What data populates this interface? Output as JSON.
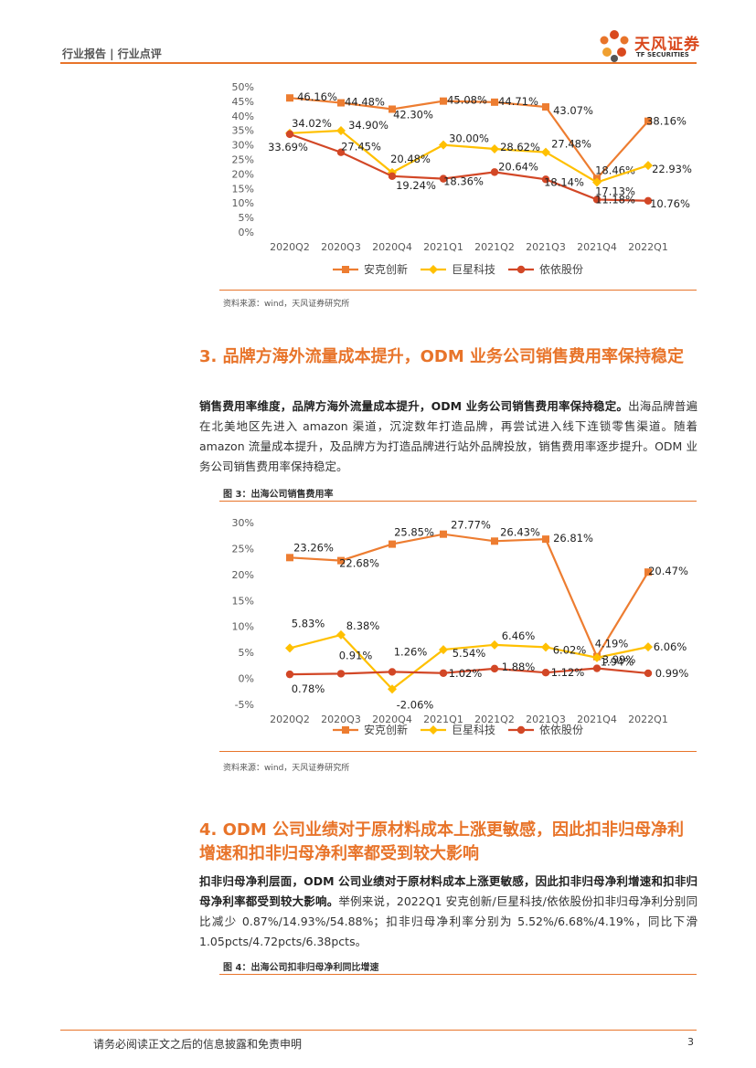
{
  "header": {
    "left": "行业报告 | 行业点评",
    "logo_name": "天风证券",
    "logo_sub": "TF SECURITIES"
  },
  "colors": {
    "accent": "#e8742a",
    "ankr": "#ed7d31",
    "jxkj": "#ffc000",
    "yygf": "#d24726"
  },
  "chart1": {
    "source": "资料来源：wind，天风证券研究所",
    "chart_data": {
      "type": "line",
      "categories": [
        "2020Q2",
        "2020Q3",
        "2020Q4",
        "2021Q1",
        "2021Q2",
        "2021Q3",
        "2021Q4",
        "2022Q1"
      ],
      "ylim": [
        0,
        50
      ],
      "yticks": [
        "0%",
        "5%",
        "10%",
        "15%",
        "20%",
        "25%",
        "30%",
        "35%",
        "40%",
        "45%",
        "50%"
      ],
      "series": [
        {
          "name": "安克创新",
          "values": [
            46.16,
            44.48,
            42.3,
            45.08,
            44.71,
            43.07,
            18.46,
            38.16
          ],
          "labels": [
            "46.16%",
            "44.48%",
            "42.30%",
            "45.08%",
            "44.71%",
            "43.07%",
            "18.46%",
            "38.16%"
          ]
        },
        {
          "name": "巨星科技",
          "values": [
            34.02,
            34.9,
            20.48,
            30.0,
            28.62,
            27.48,
            17.13,
            22.93
          ],
          "labels": [
            "34.02%",
            "34.90%",
            "20.48%",
            "30.00%",
            "28.62%",
            "27.48%",
            "17.13%",
            "22.93%"
          ]
        },
        {
          "name": "依依股份",
          "values": [
            33.69,
            27.45,
            19.24,
            18.36,
            20.64,
            18.14,
            11.18,
            10.76
          ],
          "labels": [
            "33.69%",
            "27.45%",
            "19.24%",
            "18.36%",
            "20.64%",
            "18.14%",
            "11.18%",
            "10.76%"
          ]
        }
      ]
    }
  },
  "section3": {
    "heading": "3. 品牌方海外流量成本提升，ODM 业务公司销售费用率保持稳定",
    "para_bold": "销售费用率维度，品牌方海外流量成本提升，ODM 业务公司销售费用率保持稳定。",
    "para_rest": "出海品牌普遍在北美地区先进入 amazon 渠道，沉淀数年打造品牌，再尝试进入线下连锁零售渠道。随着 amazon 流量成本提升，及品牌方为打造品牌进行站外品牌投放，销售费用率逐步提升。ODM 业务公司销售费用率保持稳定。",
    "figure_title": "图 3：出海公司销售费用率"
  },
  "chart2": {
    "source": "资料来源：wind，天风证券研究所",
    "chart_data": {
      "type": "line",
      "categories": [
        "2020Q2",
        "2020Q3",
        "2020Q4",
        "2021Q1",
        "2021Q2",
        "2021Q3",
        "2021Q4",
        "2022Q1"
      ],
      "ylim": [
        -5,
        30
      ],
      "yticks": [
        "-5%",
        "0%",
        "5%",
        "10%",
        "15%",
        "20%",
        "25%",
        "30%"
      ],
      "series": [
        {
          "name": "安克创新",
          "values": [
            23.26,
            22.68,
            25.85,
            27.77,
            26.43,
            26.81,
            4.19,
            20.47
          ],
          "labels": [
            "23.26%",
            "22.68%",
            "25.85%",
            "27.77%",
            "26.43%",
            "26.81%",
            "4.19%",
            "20.47%"
          ]
        },
        {
          "name": "巨星科技",
          "values": [
            5.83,
            8.38,
            -2.06,
            5.54,
            6.46,
            6.02,
            3.99,
            6.06
          ],
          "labels": [
            "5.83%",
            "8.38%",
            "-2.06%",
            "5.54%",
            "6.46%",
            "6.02%",
            "3.99%",
            "6.06%"
          ]
        },
        {
          "name": "依依股份",
          "values": [
            0.78,
            0.91,
            1.26,
            1.02,
            1.88,
            1.12,
            1.94,
            0.99
          ],
          "labels": [
            "0.78%",
            "0.91%",
            "1.26%",
            "1.02%",
            "1.88%",
            "1.12%",
            "1.94%",
            "0.99%"
          ]
        }
      ]
    }
  },
  "section4": {
    "heading": "4. ODM 公司业绩对于原材料成本上涨更敏感，因此扣非归母净利增速和扣非归母净利率都受到较大影响",
    "para_bold": "扣非归母净利层面，ODM 公司业绩对于原材料成本上涨更敏感，因此扣非归母净利增速和扣非归母净利率都受到较大影响。",
    "para_rest": "举例来说，2022Q1 安克创新/巨星科技/依依股份扣非归母净利分别同比减少 0.87%/14.93%/54.88%；扣非归母净利率分别为 5.52%/6.68%/4.19%，同比下滑 1.05pcts/4.72pcts/6.38pcts。",
    "figure_title": "图 4：出海公司扣非归母净利同比增速"
  },
  "footer": {
    "disclaimer": "请务必阅读正文之后的信息披露和免责申明",
    "page": "3"
  }
}
